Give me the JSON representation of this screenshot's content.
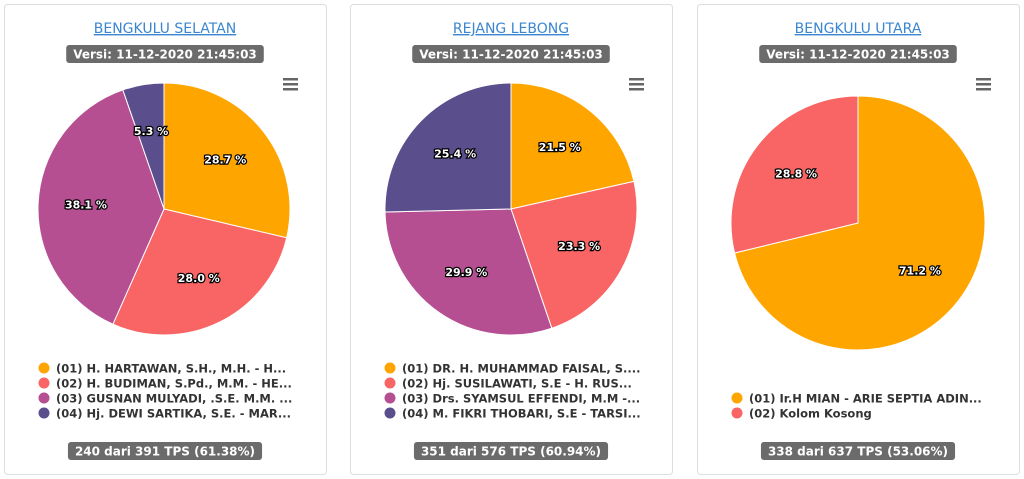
{
  "chart_data": [
    {
      "type": "pie",
      "title": "BENGKULU SELATAN",
      "subtitle": "Versi: 11-12-2020 21:45:03",
      "categories": [
        "(01) H. HARTAWAN, S.H., M.H. - H...",
        "(02) H. BUDIMAN, S.Pd., M.M. - HE...",
        "(03) GUSNAN MULYADI, .S.E. M.M. ...",
        "(04) Hj. DEWI SARTIKA, S.E. - MAR..."
      ],
      "values": [
        28.7,
        28.0,
        38.1,
        5.3
      ],
      "value_labels": [
        "28.7 %",
        "28.0 %",
        "38.1 %",
        "5.3 %"
      ],
      "colors": [
        "#ffa500",
        "#f96464",
        "#b54f91",
        "#5a4e8c"
      ],
      "footer": "240 dari 391 TPS (61.38%)"
    },
    {
      "type": "pie",
      "title": "REJANG LEBONG",
      "subtitle": "Versi: 11-12-2020 21:45:03",
      "categories": [
        "(01) DR. H. MUHAMMAD FAISAL, S....",
        "(02) Hj. SUSILAWATI, S.E - H. RUS...",
        "(03) Drs. SYAMSUL EFFENDI, M.M -...",
        "(04) M. FIKRI THOBARI, S.E - TARSI..."
      ],
      "values": [
        21.5,
        23.3,
        29.9,
        25.4
      ],
      "value_labels": [
        "21.5 %",
        "23.3 %",
        "29.9 %",
        "25.4 %"
      ],
      "colors": [
        "#ffa500",
        "#f96464",
        "#b54f91",
        "#5a4e8c"
      ],
      "footer": "351 dari 576 TPS (60.94%)"
    },
    {
      "type": "pie",
      "title": "BENGKULU UTARA",
      "subtitle": "Versi: 11-12-2020 21:45:03",
      "categories": [
        "(01) Ir.H MIAN - ARIE SEPTIA ADIN...",
        "(02) Kolom Kosong"
      ],
      "values": [
        71.2,
        28.8
      ],
      "value_labels": [
        "71.2 %",
        "28.8 %"
      ],
      "colors": [
        "#ffa500",
        "#f96464"
      ],
      "footer": "338 dari 637 TPS (53.06%)"
    }
  ]
}
